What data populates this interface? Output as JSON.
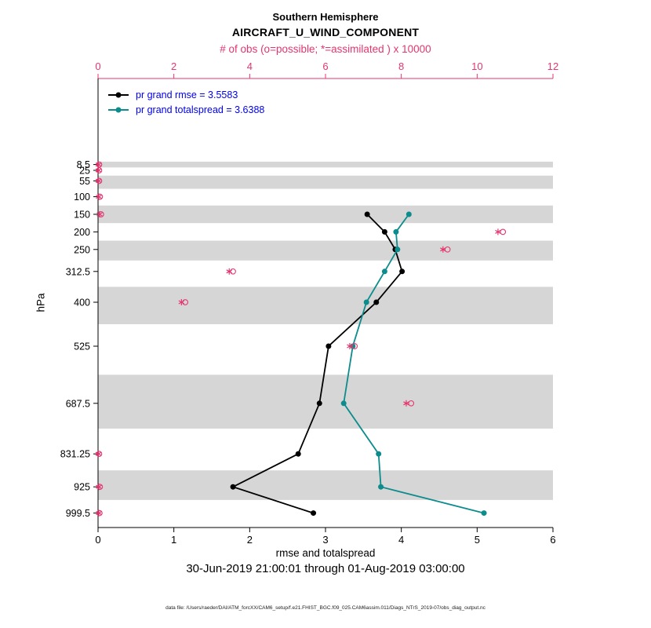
{
  "header": {
    "title_line1": "Southern Hemisphere",
    "title_line2": "AIRCRAFT_U_WIND_COMPONENT",
    "obs_axis_title": "# of obs (o=possible; *=assimilated ) x 10000"
  },
  "legend": {
    "rmse_label": "pr grand rmse = 3.5583",
    "totalspread_label": "pr grand totalspread = 3.6388"
  },
  "axes": {
    "ylabel": "hPa",
    "xlabel": "rmse and totalspread",
    "x_ticks": [
      0,
      1,
      2,
      3,
      4,
      5,
      6
    ],
    "obs_ticks": [
      0,
      2,
      4,
      6,
      8,
      10,
      12
    ],
    "y_tick_labels": [
      "8.5",
      "25",
      "55",
      "100",
      "150",
      "200",
      "250",
      "312.5",
      "400",
      "525",
      "687.5",
      "831.25",
      "925",
      "999.5"
    ]
  },
  "footer": {
    "subtitle": "30-Jun-2019 21:00:01 through 01-Aug-2019 03:00:00",
    "datafile": "data file: /Users/raeder/DAI/ATM_forcXX/CAM6_setup/f.e21.FHIST_BGC.f09_025.CAM6assim.011/Diags_NTrS_2019-07/obs_diag_output.nc"
  },
  "colors": {
    "obs": "#e5356e",
    "rmse": "#000000",
    "totalspread": "#0c8c8c",
    "legend_text": "#0000ee",
    "band": "#d6d6d6"
  },
  "chart_data": {
    "type": "line",
    "title": "Southern Hemisphere",
    "subtitle": "AIRCRAFT_U_WIND_COMPONENT",
    "xlabel": "rmse and totalspread",
    "ylabel": "hPa",
    "x2label": "# of obs (o=possible; *=assimilated ) x 10000",
    "xlim": [
      0,
      6
    ],
    "x2lim": [
      0,
      12
    ],
    "y_axis_reversed": true,
    "y_levels_hPa": [
      8.5,
      25,
      55,
      100,
      150,
      200,
      250,
      312.5,
      400,
      525,
      687.5,
      831.25,
      925,
      999.5
    ],
    "shaded_band_levels": [
      8.5,
      55,
      150,
      250,
      400,
      687.5,
      925
    ],
    "series": [
      {
        "name": "pr grand rmse = 3.5583",
        "color_key": "rmse",
        "levels": [
          150,
          200,
          250,
          312.5,
          400,
          525,
          687.5,
          831.25,
          925,
          999.5
        ],
        "values": [
          3.55,
          3.78,
          3.92,
          4.01,
          3.67,
          3.04,
          2.92,
          2.64,
          1.78,
          2.84
        ]
      },
      {
        "name": "pr grand totalspread = 3.6388",
        "color_key": "totalspread",
        "levels": [
          150,
          200,
          250,
          312.5,
          400,
          525,
          687.5,
          831.25,
          925,
          999.5
        ],
        "values": [
          4.1,
          3.93,
          3.95,
          3.78,
          3.54,
          3.36,
          3.24,
          3.7,
          3.73,
          5.09
        ]
      }
    ],
    "obs_counts_x10000": {
      "levels": [
        8.5,
        25,
        55,
        100,
        150,
        200,
        250,
        312.5,
        400,
        525,
        687.5,
        831.25,
        925,
        999.5
      ],
      "possible": [
        0.03,
        0.03,
        0.03,
        0.05,
        0.08,
        10.68,
        9.22,
        3.56,
        2.3,
        6.77,
        8.26,
        0.03,
        0.05,
        0.04
      ],
      "assimilated": [
        0.01,
        0.01,
        0.01,
        0.02,
        0.04,
        10.55,
        9.1,
        3.46,
        2.2,
        6.64,
        8.13,
        0.01,
        0.02,
        0.02
      ]
    }
  }
}
